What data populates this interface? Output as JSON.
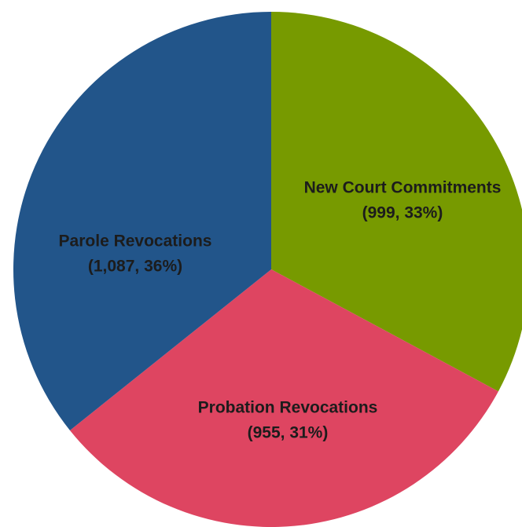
{
  "chart_data": {
    "type": "pie",
    "categories": [
      "New Court Commitments",
      "Probation Revocations",
      "Parole Revocations"
    ],
    "values": [
      999,
      955,
      1087
    ],
    "value_labels": [
      "(999, 33%)",
      "(955, 31%)",
      "(1,087, 36%)"
    ],
    "colors": [
      "#779a00",
      "#de4561",
      "#22558a"
    ]
  }
}
